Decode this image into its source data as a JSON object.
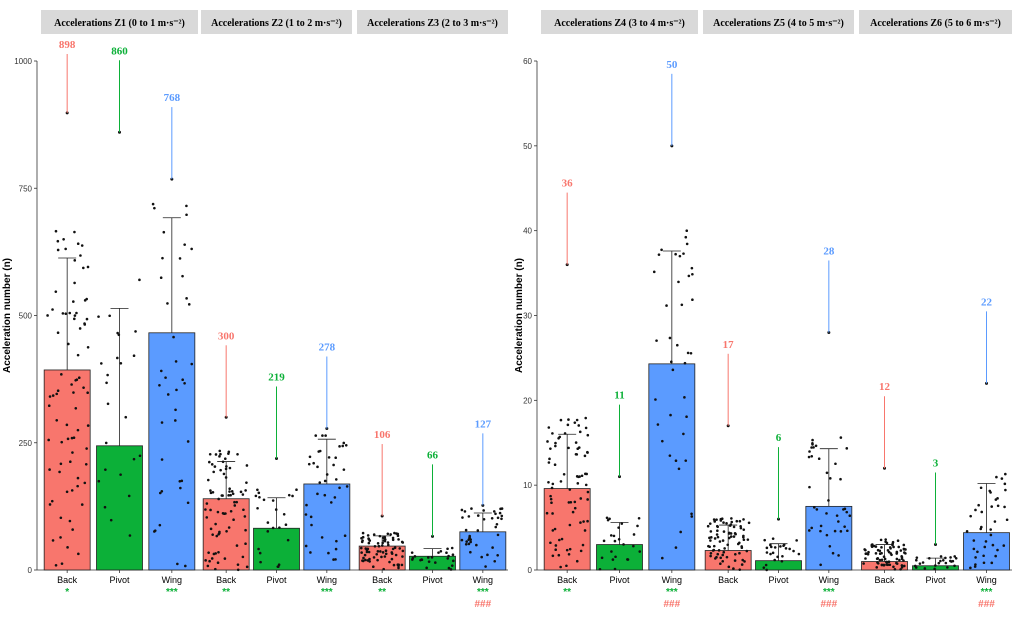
{
  "chart_data": {
    "type": "bar",
    "ylabel": "Acceleration number (n)",
    "colors": {
      "Back": "#f8766d",
      "Pivot": "#0cb038",
      "Wing": "#5b9bff",
      "sig_green": "#0cb038",
      "sig_red": "#f8766d"
    },
    "categories": [
      "Back",
      "Pivot",
      "Wing"
    ],
    "panels": [
      {
        "ylim": [
          0,
          1000
        ],
        "yticks": [
          0,
          250,
          500,
          750,
          1000
        ],
        "facets": [
          {
            "title": "Accelerations Z1 (0 to 1 m·s⁻²)",
            "groups": [
              {
                "name": "Back",
                "mean": 393,
                "sd": 220,
                "max": 898,
                "max_label": "898",
                "sig1": "*",
                "sig2": ""
              },
              {
                "name": "Pivot",
                "mean": 244,
                "sd": 270,
                "max": 860,
                "max_label": "860",
                "sig1": "",
                "sig2": ""
              },
              {
                "name": "Wing",
                "mean": 466,
                "sd": 226,
                "max": 768,
                "max_label": "768",
                "sig1": "***",
                "sig2": ""
              }
            ]
          },
          {
            "title": "Accelerations Z2 (1 to 2 m·s⁻²)",
            "groups": [
              {
                "name": "Back",
                "mean": 140,
                "sd": 73,
                "max": 300,
                "max_label": "300",
                "sig1": "**",
                "sig2": ""
              },
              {
                "name": "Pivot",
                "mean": 82,
                "sd": 60,
                "max": 219,
                "max_label": "219",
                "sig1": "",
                "sig2": ""
              },
              {
                "name": "Wing",
                "mean": 169,
                "sd": 88,
                "max": 278,
                "max_label": "278",
                "sig1": "***",
                "sig2": ""
              }
            ]
          },
          {
            "title": "Accelerations Z3 (2 to 3 m·s⁻²)",
            "groups": [
              {
                "name": "Back",
                "mean": 47,
                "sd": 20,
                "max": 106,
                "max_label": "106",
                "sig1": "**",
                "sig2": ""
              },
              {
                "name": "Pivot",
                "mean": 27,
                "sd": 15,
                "max": 66,
                "max_label": "66",
                "sig1": "",
                "sig2": ""
              },
              {
                "name": "Wing",
                "mean": 75,
                "sd": 37,
                "max": 127,
                "max_label": "127",
                "sig1": "***",
                "sig2": "###"
              }
            ]
          }
        ]
      },
      {
        "ylim": [
          0,
          60
        ],
        "yticks": [
          0,
          10,
          20,
          30,
          40,
          50,
          60
        ],
        "facets": [
          {
            "title": "Accelerations Z4 (3 to 4 m·s⁻²)",
            "groups": [
              {
                "name": "Back",
                "mean": 9.6,
                "sd": 6.4,
                "max": 36,
                "max_label": "36",
                "sig1": "**",
                "sig2": ""
              },
              {
                "name": "Pivot",
                "mean": 3,
                "sd": 2.6,
                "max": 11,
                "max_label": "11",
                "sig1": "",
                "sig2": ""
              },
              {
                "name": "Wing",
                "mean": 24.3,
                "sd": 13.3,
                "max": 50,
                "max_label": "50",
                "sig1": "***",
                "sig2": "###"
              }
            ]
          },
          {
            "title": "Accelerations Z5 (4 to 5 m·s⁻²)",
            "groups": [
              {
                "name": "Back",
                "mean": 2.3,
                "sd": 3.0,
                "max": 17,
                "max_label": "17",
                "sig1": "",
                "sig2": ""
              },
              {
                "name": "Pivot",
                "mean": 1.1,
                "sd": 2.0,
                "max": 6,
                "max_label": "6",
                "sig1": "",
                "sig2": ""
              },
              {
                "name": "Wing",
                "mean": 7.5,
                "sd": 6.8,
                "max": 28,
                "max_label": "28",
                "sig1": "***",
                "sig2": "###"
              }
            ]
          },
          {
            "title": "Accelerations Z6 (5 to 6 m·s⁻²)",
            "groups": [
              {
                "name": "Back",
                "mean": 1,
                "sd": 2.0,
                "max": 12,
                "max_label": "12",
                "sig1": "",
                "sig2": ""
              },
              {
                "name": "Pivot",
                "mean": 0.5,
                "sd": 0.9,
                "max": 3,
                "max_label": "3",
                "sig1": "",
                "sig2": ""
              },
              {
                "name": "Wing",
                "mean": 4.4,
                "sd": 5.8,
                "max": 22,
                "max_label": "22",
                "sig1": "***",
                "sig2": "###"
              }
            ]
          }
        ]
      }
    ]
  }
}
